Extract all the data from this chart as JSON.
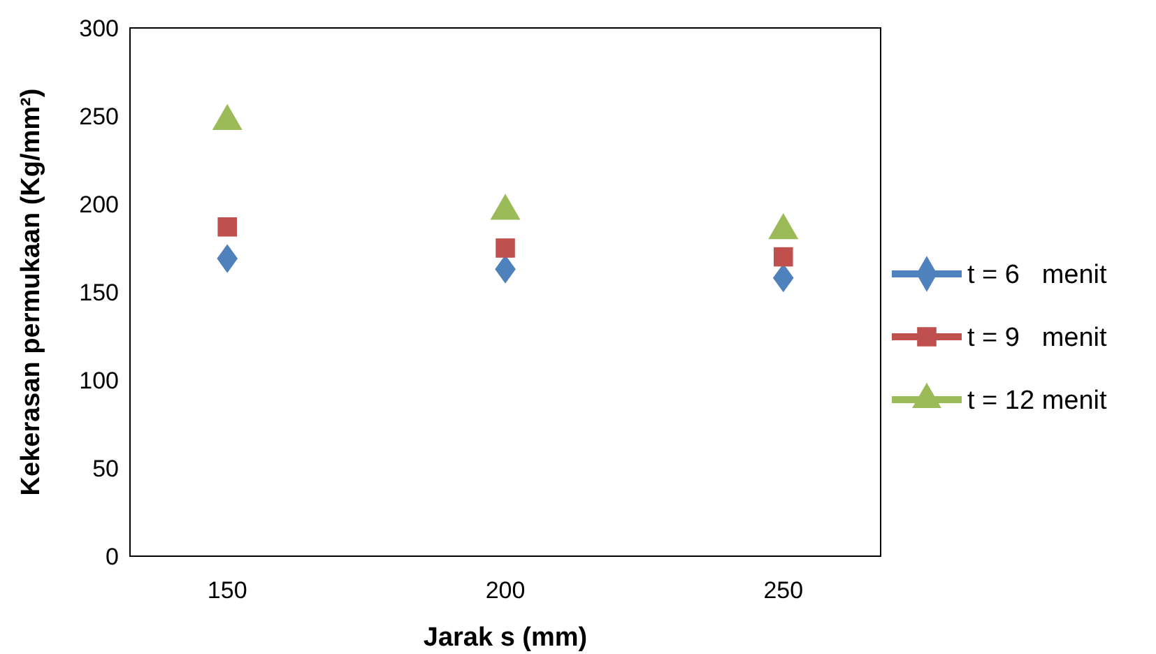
{
  "chart_data": {
    "type": "scatter",
    "xlabel": "Jarak s  (mm)",
    "ylabel": "Kekerasan permukaan (Kg/mm²)",
    "categories": [
      "150",
      "200",
      "250"
    ],
    "ylim": [
      0,
      300
    ],
    "yticks": [
      0,
      50,
      100,
      150,
      200,
      250,
      300
    ],
    "grid": false,
    "legend": "right",
    "series": [
      {
        "name": "t = 6   menit",
        "color": "#4f81bd",
        "marker": "diamond",
        "values": [
          169,
          163,
          158
        ]
      },
      {
        "name": "t = 9   menit",
        "color": "#c0504d",
        "marker": "square",
        "values": [
          187,
          175,
          170
        ]
      },
      {
        "name": "t = 12 menit",
        "color": "#9bbb59",
        "marker": "triangle",
        "values": [
          247,
          196,
          185
        ]
      }
    ]
  }
}
